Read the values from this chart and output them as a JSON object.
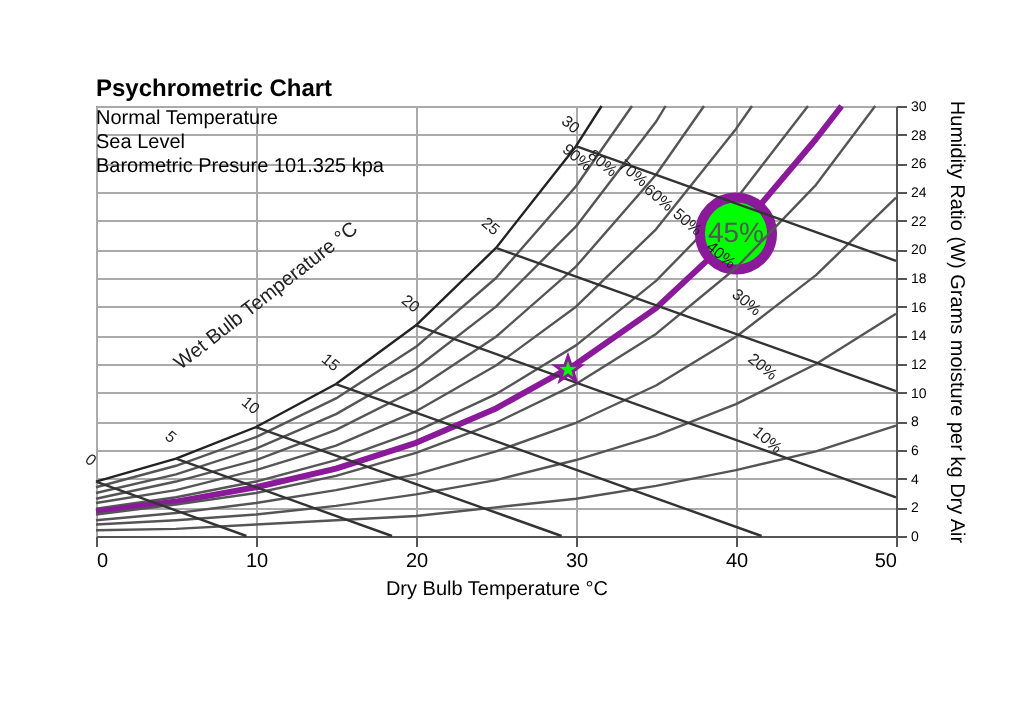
{
  "chart_data": {
    "type": "line",
    "title": "Psychrometric Chart",
    "subtitle": [
      "Normal Temperature",
      "Sea Level",
      "Barometric Presure 101.325 kpa"
    ],
    "xlabel": "Dry Bulb Temperature °C",
    "ylabel": "Humidity Ratio (W) Grams moisture per kg Dry Air",
    "xlim": [
      0,
      50
    ],
    "ylim": [
      0,
      30
    ],
    "xticks": [
      0,
      10,
      20,
      30,
      40,
      50
    ],
    "yticks": [
      0,
      2,
      4,
      6,
      8,
      10,
      12,
      14,
      16,
      18,
      20,
      22,
      24,
      26,
      28,
      30
    ],
    "grid": true,
    "legend": false,
    "series": [
      {
        "color": "#222222",
        "x": [
          0,
          5,
          10,
          15,
          20,
          25,
          30,
          31.6
        ],
        "values": [
          3.8,
          5.4,
          7.6,
          10.6,
          14.7,
          20.1,
          27.2,
          30
        ]
      },
      {
        "color": "#555555",
        "x": [
          0,
          5,
          10,
          15,
          20,
          25,
          30,
          33.5
        ],
        "values": [
          3.4,
          4.9,
          6.9,
          9.6,
          13.2,
          18.0,
          24.4,
          30
        ]
      },
      {
        "color": "#555555",
        "x": [
          0,
          5,
          10,
          15,
          20,
          25,
          30,
          35,
          35.6
        ],
        "values": [
          3.0,
          4.3,
          6.1,
          8.5,
          11.7,
          16.0,
          21.6,
          28.9,
          30
        ]
      },
      {
        "color": "#555555",
        "x": [
          0,
          5,
          10,
          15,
          20,
          25,
          30,
          35,
          38
        ],
        "values": [
          2.6,
          3.8,
          5.3,
          7.4,
          10.2,
          13.9,
          18.8,
          25.2,
          30
        ]
      },
      {
        "color": "#555555",
        "x": [
          0,
          5,
          10,
          15,
          20,
          25,
          30,
          35,
          40,
          41
        ],
        "values": [
          2.3,
          3.2,
          4.6,
          6.3,
          8.7,
          11.9,
          16.0,
          21.4,
          28.4,
          30
        ]
      },
      {
        "color": "#555555",
        "x": [
          0,
          5,
          10,
          15,
          20,
          25,
          30,
          35,
          40,
          44.5
        ],
        "values": [
          1.9,
          2.7,
          3.8,
          5.3,
          7.3,
          9.9,
          13.3,
          17.8,
          23.5,
          30
        ]
      },
      {
        "name": "45%",
        "color": "#8b1a9b",
        "x": [
          0,
          5,
          10,
          15,
          20,
          25,
          30,
          35,
          40,
          45,
          46.6
        ],
        "values": [
          1.7,
          2.4,
          3.4,
          4.7,
          6.5,
          8.9,
          12.0,
          15.9,
          21.1,
          27.7,
          30
        ]
      },
      {
        "color": "#555555",
        "x": [
          0,
          5,
          10,
          15,
          20,
          25,
          30,
          35,
          40,
          45,
          48.7
        ],
        "values": [
          1.5,
          2.2,
          3.0,
          4.2,
          5.8,
          7.9,
          10.6,
          14.1,
          18.7,
          24.5,
          30
        ]
      },
      {
        "color": "#555555",
        "x": [
          0,
          5,
          10,
          15,
          20,
          25,
          30,
          35,
          40,
          45,
          50
        ],
        "values": [
          1.1,
          1.6,
          2.3,
          3.2,
          4.3,
          5.9,
          7.9,
          10.5,
          13.9,
          18.2,
          23.6
        ]
      },
      {
        "color": "#555555",
        "x": [
          0,
          5,
          10,
          15,
          20,
          25,
          30,
          35,
          40,
          45,
          50
        ],
        "values": [
          0.8,
          1.1,
          1.5,
          2.1,
          2.9,
          3.9,
          5.3,
          7.0,
          9.2,
          12.0,
          15.5
        ]
      },
      {
        "color": "#555555",
        "x": [
          0,
          5,
          10,
          15,
          20,
          25,
          30,
          35,
          40,
          45,
          50
        ],
        "values": [
          0.4,
          0.5,
          0.8,
          1.1,
          1.4,
          2.0,
          2.6,
          3.5,
          4.6,
          5.9,
          7.7
        ]
      },
      {
        "color": "#333333",
        "x": [
          0,
          9.4
        ],
        "values": [
          3.8,
          0
        ]
      },
      {
        "color": "#333333",
        "x": [
          5,
          18.5
        ],
        "values": [
          5.4,
          0
        ]
      },
      {
        "color": "#333333",
        "x": [
          10,
          29.1
        ],
        "values": [
          7.6,
          0
        ]
      },
      {
        "color": "#333333",
        "x": [
          15,
          41.6
        ],
        "values": [
          10.6,
          0
        ]
      },
      {
        "color": "#333333",
        "x": [
          20,
          50
        ],
        "values": [
          14.7,
          2.7
        ]
      },
      {
        "color": "#333333",
        "x": [
          25,
          50
        ],
        "values": [
          20.1,
          10.1
        ]
      },
      {
        "color": "#333333",
        "x": [
          30,
          50
        ],
        "values": [
          27.2,
          19.2
        ]
      },
      {
        "type": "scatter",
        "marker": "star",
        "color": "#00ff00",
        "x": [
          29.5
        ],
        "values": [
          11.6
        ]
      }
    ],
    "annotations": [
      {
        "text": "90%",
        "x": 30.4,
        "y": 24.9
      },
      {
        "text": "80%",
        "x": 32,
        "y": 24.5
      },
      {
        "text": "70%",
        "x": 33.9,
        "y": 23.8
      },
      {
        "text": "60%",
        "x": 35.5,
        "y": 22.1
      },
      {
        "text": "50%",
        "x": 37.3,
        "y": 20.4
      },
      {
        "text": "40%",
        "x": 39.4,
        "y": 18.1
      },
      {
        "text": "30%",
        "x": 41,
        "y": 14.8
      },
      {
        "text": "20%",
        "x": 42,
        "y": 10.3
      },
      {
        "text": "10%",
        "x": 42.3,
        "y": 5.2
      },
      {
        "text": "0",
        "x": 0,
        "y": 3.8
      },
      {
        "text": "5",
        "x": 5,
        "y": 5.4
      },
      {
        "text": "10",
        "x": 10,
        "y": 7.6
      },
      {
        "text": "15",
        "x": 15,
        "y": 10.6
      },
      {
        "text": "20",
        "x": 20,
        "y": 14.7
      },
      {
        "text": "25",
        "x": 25,
        "y": 20.1
      },
      {
        "text": "30",
        "x": 30,
        "y": 27.2
      },
      "Wet Bulb Temperature °C"
    ]
  }
}
